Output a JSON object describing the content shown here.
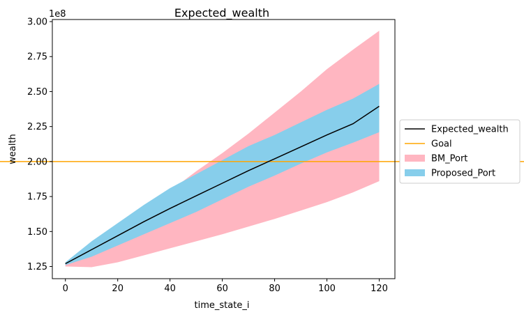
{
  "chart_data": {
    "type": "area",
    "title": "Expected_wealth",
    "xlabel": "time_state_i",
    "ylabel": "wealth",
    "y_scale_label": "1e8",
    "xlim": [
      -5,
      126
    ],
    "ylim": [
      1.163,
      3.015
    ],
    "x_ticks": [
      0,
      20,
      40,
      60,
      80,
      100,
      120
    ],
    "y_ticks": [
      1.25,
      1.5,
      1.75,
      2.0,
      2.25,
      2.5,
      2.75,
      3.0
    ],
    "y_tick_labels": [
      "1.25",
      "1.50",
      "1.75",
      "2.00",
      "2.25",
      "2.50",
      "2.75",
      "3.00"
    ],
    "grid": false,
    "legend_position": "right-outside",
    "x": [
      0,
      10,
      20,
      30,
      40,
      50,
      60,
      70,
      80,
      90,
      100,
      110,
      120
    ],
    "series": [
      {
        "name": "Expected_wealth",
        "kind": "line",
        "color": "#000000",
        "values": [
          1.27,
          1.37,
          1.47,
          1.57,
          1.665,
          1.755,
          1.845,
          1.935,
          2.02,
          2.105,
          2.19,
          2.27,
          2.395
        ]
      },
      {
        "name": "Goal",
        "kind": "hline",
        "color": "#ffa500",
        "value": 2.0
      },
      {
        "name": "BM_Port",
        "kind": "band",
        "color": "#ffb6c1",
        "lower": [
          1.25,
          1.245,
          1.28,
          1.33,
          1.38,
          1.43,
          1.48,
          1.535,
          1.59,
          1.65,
          1.71,
          1.78,
          1.86
        ],
        "upper": [
          1.27,
          1.4,
          1.53,
          1.66,
          1.79,
          1.93,
          2.06,
          2.2,
          2.35,
          2.5,
          2.66,
          2.8,
          2.935
        ]
      },
      {
        "name": "Proposed_Port",
        "kind": "band",
        "color": "#87ceeb",
        "lower": [
          1.26,
          1.32,
          1.4,
          1.48,
          1.56,
          1.64,
          1.73,
          1.82,
          1.9,
          1.985,
          2.065,
          2.135,
          2.21
        ],
        "upper": [
          1.28,
          1.43,
          1.56,
          1.69,
          1.81,
          1.91,
          2.01,
          2.11,
          2.19,
          2.28,
          2.37,
          2.45,
          2.555
        ]
      }
    ]
  }
}
